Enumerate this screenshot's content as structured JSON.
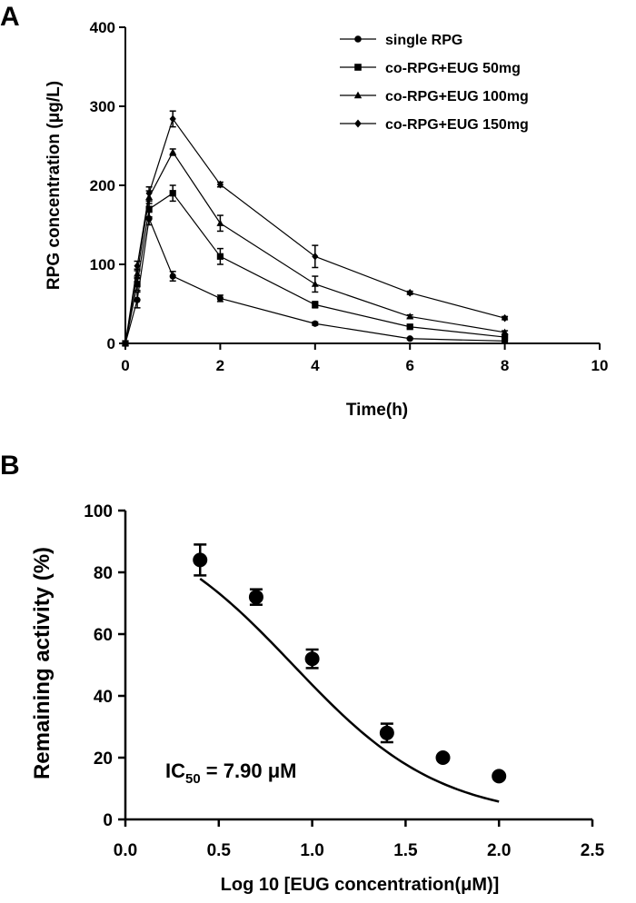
{
  "chart_data": [
    {
      "panel_label": "A",
      "type": "line",
      "xlabel": "Time(h)",
      "ylabel": "RPG concentration (μg/L)",
      "xlim": [
        0,
        10
      ],
      "ylim": [
        0,
        400
      ],
      "xticks": [
        0,
        2,
        4,
        6,
        8,
        10
      ],
      "yticks": [
        0,
        100,
        200,
        300,
        400
      ],
      "legend_position": "top-right",
      "grid": false,
      "x": [
        0,
        0.25,
        0.5,
        1,
        2,
        4,
        6,
        8
      ],
      "series": [
        {
          "name": "single RPG",
          "marker": "circle",
          "values": [
            0,
            55,
            158,
            85,
            57,
            25,
            6,
            3
          ],
          "errors": [
            0,
            10,
            8,
            6,
            4,
            2,
            1,
            1
          ]
        },
        {
          "name": "co-RPG+EUG 50mg",
          "marker": "square",
          "values": [
            0,
            75,
            170,
            190,
            110,
            49,
            21,
            8
          ],
          "errors": [
            0,
            8,
            10,
            10,
            10,
            4,
            2,
            1
          ]
        },
        {
          "name": "co-RPG+EUG 100mg",
          "marker": "triangle",
          "values": [
            0,
            88,
            185,
            242,
            152,
            75,
            34,
            14
          ],
          "errors": [
            0,
            6,
            8,
            4,
            10,
            10,
            2,
            2
          ]
        },
        {
          "name": "co-RPG+EUG 150mg",
          "marker": "diamond",
          "values": [
            0,
            98,
            190,
            284,
            201,
            110,
            64,
            32
          ],
          "errors": [
            0,
            6,
            8,
            10,
            3,
            14,
            2,
            2
          ]
        }
      ]
    },
    {
      "panel_label": "B",
      "type": "scatter",
      "xlabel": "Log 10 [EUG concentration(μM)]",
      "ylabel": "Remaining activity (%)",
      "xlim": [
        0,
        2.5
      ],
      "ylim": [
        0,
        100
      ],
      "xticks": [
        "0.0",
        "0.5",
        "1.0",
        "1.5",
        "2.0",
        "2.5"
      ],
      "yticks": [
        0,
        20,
        40,
        60,
        80,
        100
      ],
      "grid": false,
      "series": [
        {
          "x": [
            0.4,
            0.7,
            1.0,
            1.4,
            1.7,
            2.0
          ],
          "values": [
            84,
            72,
            52,
            28,
            20,
            14
          ],
          "errors": [
            5,
            2.5,
            3,
            3,
            0,
            0
          ]
        }
      ],
      "fit_curve": {
        "x_from": 0.4,
        "x_to": 2.0,
        "top": 100,
        "bottom": 0,
        "log_ic50": 0.898,
        "hill": 1.1
      },
      "annotation": {
        "prefix": "IC",
        "subscript": "50",
        "suffix": " = 7.90 μM"
      }
    }
  ]
}
